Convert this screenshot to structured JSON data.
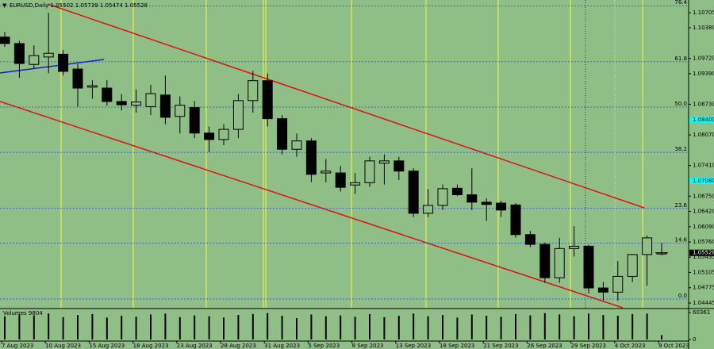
{
  "chart_data": [
    {
      "type": "candlestick",
      "title": "EURUSD,Daily 1.05502 1.05739 1.05474 1.05528",
      "categories": [
        "7 Aug 2023",
        null,
        null,
        "10 Aug 2023",
        null,
        null,
        "15 Aug 2023",
        null,
        null,
        "18 Aug 2023",
        null,
        null,
        "23 Aug 2023",
        null,
        null,
        "28 Aug 2023",
        null,
        null,
        "31 Aug 2023",
        null,
        null,
        "5 Sep 2023",
        null,
        null,
        "8 Sep 2023",
        null,
        null,
        "13 Sep 2023",
        null,
        null,
        "18 Sep 2023",
        null,
        null,
        "21 Sep 2023",
        null,
        null,
        "26 Sep 2023",
        null,
        null,
        "29 Sep 2023",
        null,
        null,
        "4 Oct 2023",
        null,
        null,
        "9 Oct 2023"
      ],
      "open": [
        1.1018,
        1.1004,
        1.0959,
        1.0975,
        1.0981,
        1.0949,
        1.091,
        1.0908,
        1.0879,
        1.0871,
        1.0868,
        1.0893,
        1.0847,
        1.0866,
        1.0811,
        1.0797,
        1.0819,
        1.0881,
        1.0924,
        1.0842,
        1.0776,
        1.0794,
        1.0725,
        1.0725,
        1.0699,
        1.0704,
        1.0746,
        1.0751,
        1.0729,
        1.0638,
        1.0655,
        1.0692,
        1.0678,
        1.0662,
        1.066,
        1.0656,
        1.0592,
        1.0571,
        1.0499,
        1.0562,
        1.0567,
        1.0477,
        1.0468,
        1.0502,
        1.0549,
        1.05502
      ],
      "high": [
        1.1029,
        1.101,
        1.1,
        1.107,
        1.099,
        1.096,
        1.0925,
        1.0925,
        1.0895,
        1.0905,
        1.0915,
        1.0935,
        1.089,
        1.088,
        1.0825,
        1.083,
        1.0895,
        1.0945,
        1.094,
        1.085,
        1.081,
        1.08,
        1.0755,
        1.074,
        1.0725,
        1.076,
        1.0765,
        1.076,
        1.0735,
        1.069,
        1.07,
        1.07,
        1.0735,
        1.067,
        1.0665,
        1.066,
        1.06,
        1.0575,
        1.0585,
        1.061,
        1.057,
        1.049,
        1.0535,
        1.055,
        1.059,
        1.05739
      ],
      "low": [
        1.0997,
        1.093,
        1.095,
        1.094,
        1.0935,
        1.0868,
        1.0885,
        1.087,
        1.086,
        1.0855,
        1.085,
        1.083,
        1.081,
        1.08,
        1.077,
        1.0785,
        1.08,
        1.0855,
        1.0825,
        1.0765,
        1.076,
        1.0705,
        1.0705,
        1.0685,
        1.068,
        1.0695,
        1.07,
        1.071,
        1.063,
        1.063,
        1.0645,
        1.0675,
        1.0645,
        1.0622,
        1.063,
        1.0585,
        1.0565,
        1.0488,
        1.0488,
        1.0545,
        1.0465,
        1.045,
        1.045,
        1.049,
        1.0482,
        1.05474
      ],
      "close": [
        1.1004,
        1.0961,
        1.0978,
        1.0983,
        1.0944,
        1.0908,
        1.0913,
        1.0879,
        1.0872,
        1.0878,
        1.0896,
        1.0845,
        1.0871,
        1.0811,
        1.0797,
        1.0819,
        1.0881,
        1.0924,
        1.0842,
        1.0776,
        1.0794,
        1.0722,
        1.0729,
        1.0694,
        1.0704,
        1.0751,
        1.0751,
        1.0729,
        1.0638,
        1.0655,
        1.0691,
        1.0678,
        1.0662,
        1.0657,
        1.0645,
        1.0592,
        1.0571,
        1.0499,
        1.0562,
        1.0567,
        1.0477,
        1.0468,
        1.0502,
        1.0549,
        1.0585,
        1.05528
      ],
      "up_color": "#8fbf86",
      "down_color": "#000000",
      "ylim": [
        1.04343,
        1.10979
      ],
      "yticks": [
        1.10705,
        {
          "value": 1.1038,
          "label": "1.10380"
        },
        {
          "value": 1.0972,
          "label": "1.09720"
        },
        {
          "value": 1.0939,
          "label": "1.09390"
        },
        {
          "value": 1.0873,
          "label": "1.08730"
        },
        {
          "value": 1.0807,
          "label": "1.08070"
        },
        {
          "value": 1.0741,
          "label": "1.07410"
        },
        {
          "value": 1.0675,
          "label": "1.06750"
        },
        {
          "value": 1.0642,
          "label": "1.06420"
        },
        {
          "value": 1.0609,
          "label": "1.06090"
        },
        {
          "value": 1.0576,
          "label": "1.05760"
        },
        1.05435,
        1.05105,
        1.04775,
        1.04445
      ],
      "price_markers": [
        {
          "value": 1.084,
          "label": "1.08400",
          "color": "#00ffff"
        },
        {
          "value": 1.0708,
          "label": "1.07080",
          "color": "#00ffff"
        }
      ],
      "fib_range": [
        1.04531,
        1.12809
      ],
      "fib_levels": [
        {
          "value": 0,
          "label": "0.0"
        },
        14.6,
        23.6,
        38.2,
        {
          "value": 50,
          "label": "50.0"
        },
        61.8,
        76.4
      ],
      "fib_color": "#2050e0"
    },
    {
      "type": "bar",
      "title": "Volumes 9804",
      "values": [
        52000,
        56000,
        54000,
        58000,
        50000,
        55000,
        57000,
        49000,
        53000,
        51000,
        56000,
        58000,
        50000,
        54000,
        52000,
        49000,
        55000,
        57000,
        59000,
        53000,
        48000,
        56000,
        52000,
        54000,
        51000,
        57000,
        50000,
        53000,
        58000,
        52000,
        55000,
        49000,
        56000,
        53000,
        51000,
        57000,
        54000,
        59000,
        56000,
        52000,
        58000,
        55000,
        53000,
        57000,
        58000,
        9804
      ],
      "color": "#000000",
      "ylim": [
        0,
        60361
      ],
      "yticks": [
        0,
        60361
      ]
    }
  ]
}
